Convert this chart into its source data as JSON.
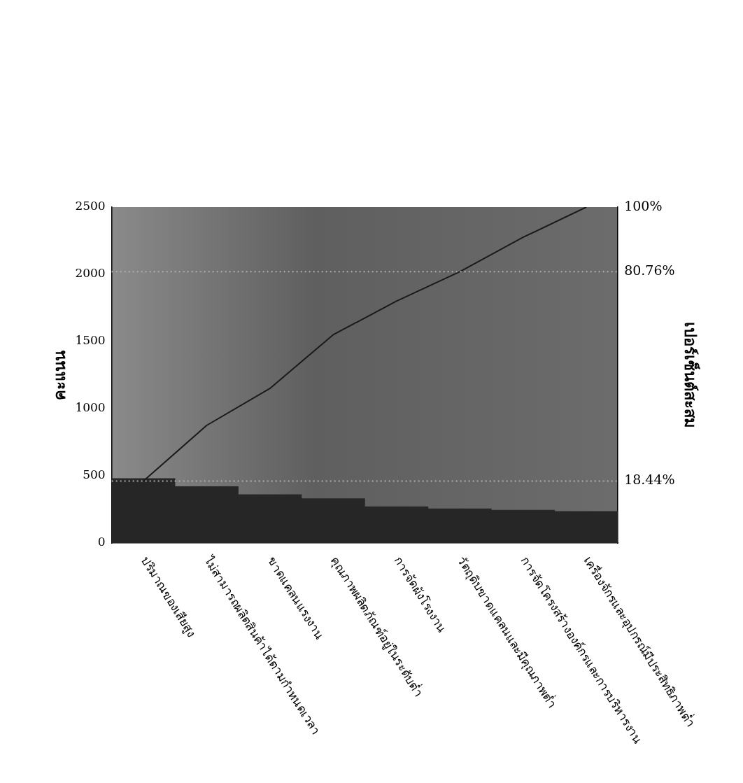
{
  "chart_data": {
    "type": "bar",
    "ylabel": "คะแนน",
    "y2label": "เปอร์เซ็นต์สะสม",
    "categories": [
      "ปริมาณของเสียสูง",
      "ไม่สามารถผลิตสินค้าได้ตามกำหนดเวลา",
      "ขาดแคลนแรงงาน",
      "คุณภาพผลิตภัณฑ์อยู่ในระดับต่ำ",
      "การจัดผังโรงงาน",
      "วัตถุดิบขาดแคลนและมีคุณภาพต่ำ",
      "การจัดโครงสร้างองค์กรและการบริหารงาน",
      "เครื่องจักรและอุปกรณ์มีประสิทธิภาพต่ำ"
    ],
    "series": [
      {
        "color": "#262626",
        "values": [
          480,
          420,
          360,
          330,
          270,
          255,
          245,
          235
        ]
      },
      {
        "type": "line",
        "axis": "y2",
        "color": "#1a1a1a",
        "values": [
          18.44,
          35,
          46,
          62,
          72,
          80.76,
          91,
          100
        ]
      }
    ],
    "ylim": [
      0,
      2500
    ],
    "yticks": [
      0,
      500,
      1000,
      1500,
      2000,
      2500
    ],
    "y2lim": [
      0,
      100
    ],
    "y2ticks": [
      {
        "value": 18.44,
        "label": "18.44%"
      },
      {
        "value": 80.76,
        "label": "80.76%"
      },
      {
        "value": 100,
        "label": "100%"
      }
    ],
    "ref_lines": [
      {
        "axis": "y2",
        "value": 18.44,
        "color": "#b0b0b0",
        "line_style": "dotted"
      },
      {
        "axis": "y2",
        "value": 80.76,
        "color": "#b0b0b0",
        "line_style": "dotted"
      }
    ],
    "grid": false,
    "legend": false,
    "marker": "none"
  }
}
